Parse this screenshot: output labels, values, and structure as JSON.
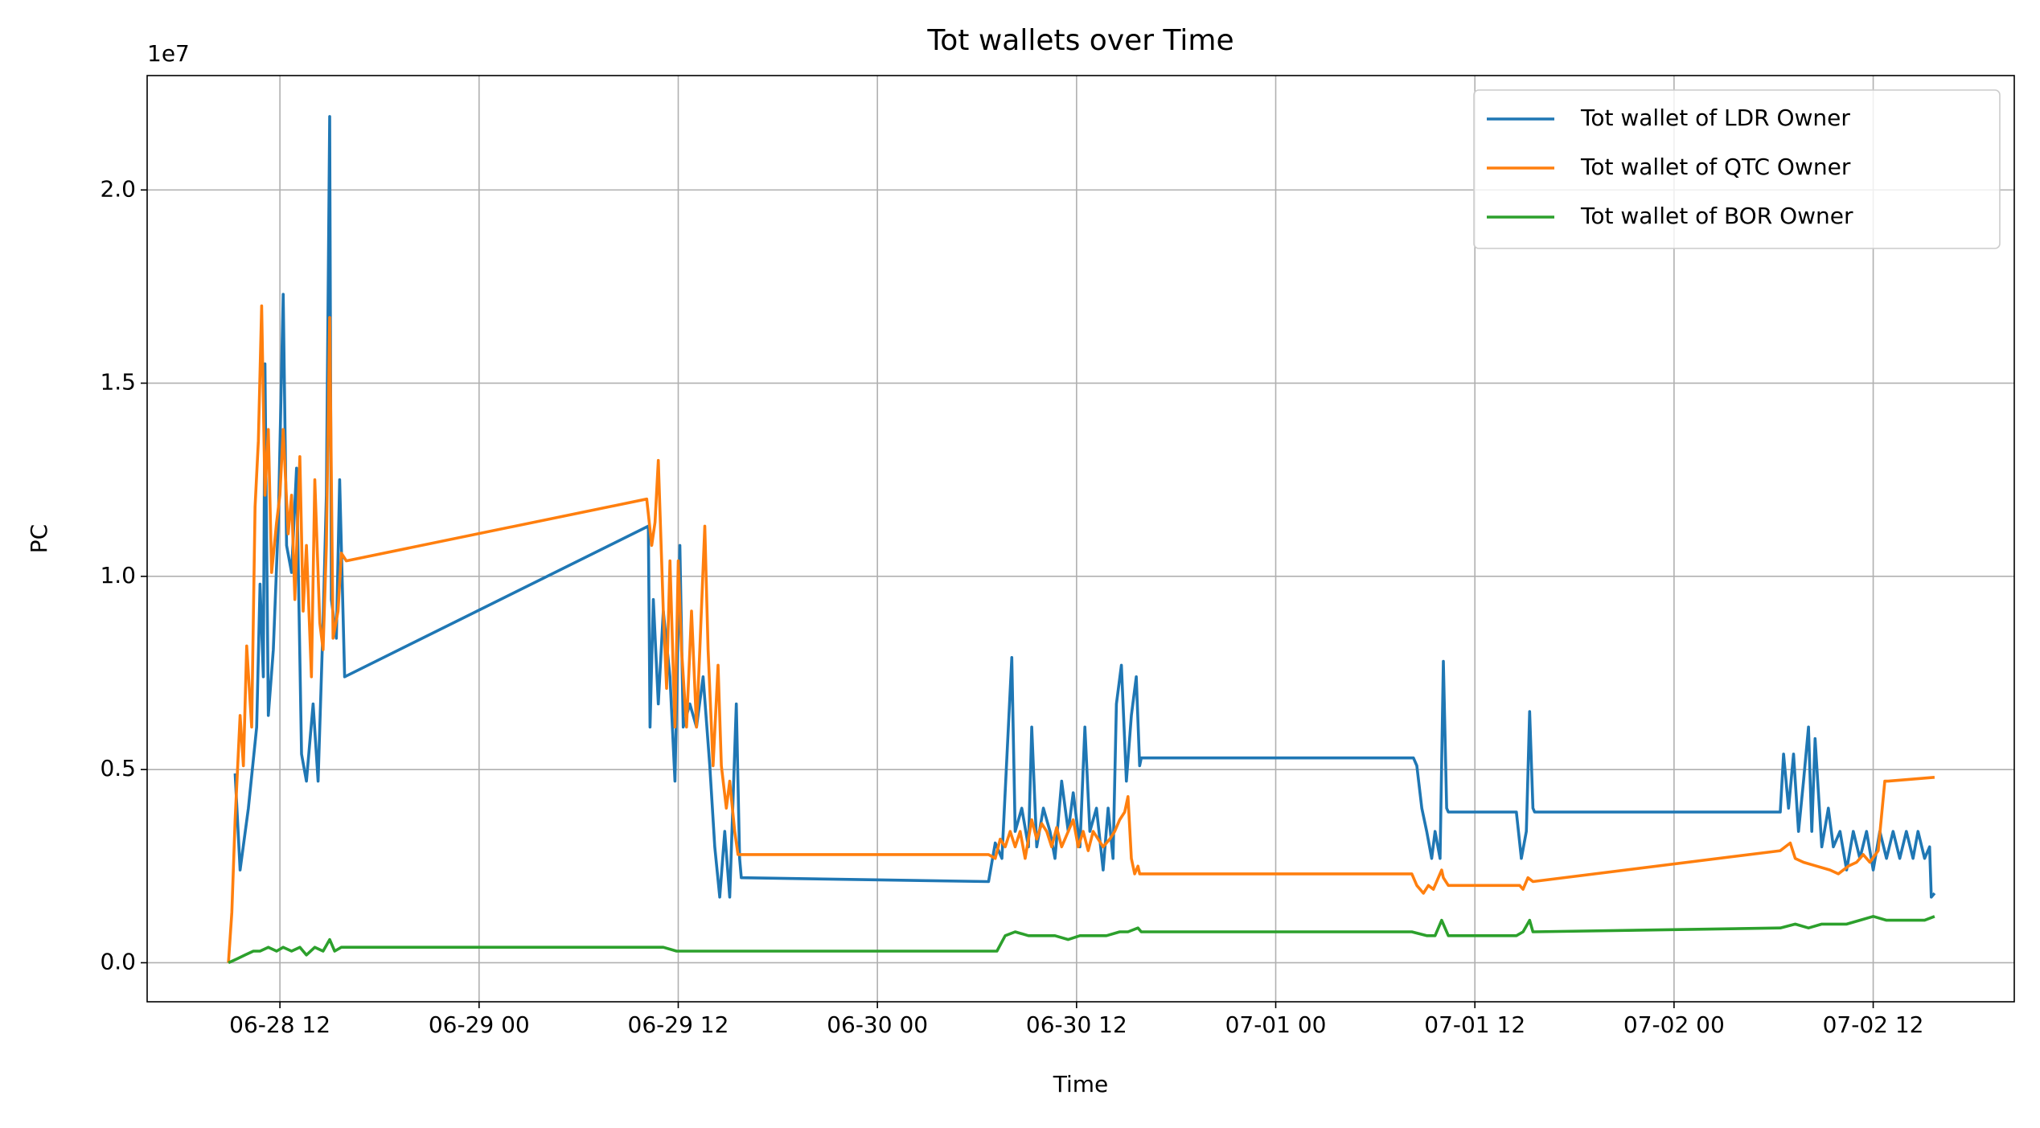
{
  "chart_data": {
    "type": "line",
    "title": "Tot wallets over Time",
    "x_label": "Time",
    "y_label": "PC",
    "y_offset_label": "1e7",
    "xlim": [
      4.0,
      116.5
    ],
    "xticks": [
      {
        "value": 12,
        "label": "06-28 12"
      },
      {
        "value": 24,
        "label": "06-29 00"
      },
      {
        "value": 36,
        "label": "06-29 12"
      },
      {
        "value": 48,
        "label": "06-30 00"
      },
      {
        "value": 60,
        "label": "06-30 12"
      },
      {
        "value": 72,
        "label": "07-01 00"
      },
      {
        "value": 84,
        "label": "07-01 12"
      },
      {
        "value": 96,
        "label": "07-02 00"
      },
      {
        "value": 108,
        "label": "07-02 12"
      }
    ],
    "ylim": [
      -1010000.0,
      22960000.0
    ],
    "yticks": [
      {
        "value": 0,
        "label": "0.0"
      },
      {
        "value": 5000000.0,
        "label": "0.5"
      },
      {
        "value": 10000000.0,
        "label": "1.0"
      },
      {
        "value": 15000000.0,
        "label": "1.5"
      },
      {
        "value": 20000000.0,
        "label": "2.0"
      }
    ],
    "grid": true,
    "legend": "upper right",
    "series": [
      {
        "name": "Tot wallet of LDR Owner",
        "color": "#1f77b4",
        "x": [
          9.3,
          9.6,
          10.1,
          10.6,
          10.8,
          11.0,
          11.1,
          11.3,
          11.6,
          11.9,
          12.2,
          12.4,
          12.7,
          13.0,
          13.3,
          13.6,
          14.0,
          14.3,
          14.6,
          14.8,
          15.0,
          15.1,
          15.4,
          15.6,
          15.9,
          34.2,
          34.3,
          34.5,
          34.8,
          35.1,
          35.5,
          35.8,
          36.1,
          36.3,
          36.7,
          37.1,
          37.5,
          37.9,
          38.2,
          38.5,
          38.8,
          39.1,
          39.5,
          39.7,
          39.8,
          54.7,
          55.1,
          55.5,
          56.1,
          56.3,
          56.7,
          57.1,
          57.3,
          57.6,
          58.0,
          58.4,
          58.7,
          59.1,
          59.5,
          59.8,
          60.2,
          60.5,
          60.8,
          61.2,
          61.6,
          61.9,
          62.2,
          62.4,
          62.7,
          63.0,
          63.3,
          63.6,
          63.8,
          63.9,
          80.3,
          80.5,
          80.8,
          81.1,
          81.4,
          81.6,
          81.9,
          82.1,
          82.3,
          82.4,
          86.5,
          86.8,
          87.1,
          87.3,
          87.5,
          87.6,
          102.4,
          102.6,
          102.9,
          103.2,
          103.5,
          103.8,
          104.1,
          104.3,
          104.5,
          104.9,
          105.3,
          105.6,
          106.0,
          106.4,
          106.8,
          107.2,
          107.6,
          108.0,
          108.4,
          108.8,
          109.2,
          109.6,
          110.0,
          110.4,
          110.7,
          111.1,
          111.4,
          111.5,
          111.7
        ],
        "values": [
          4900000.0,
          2400000.0,
          4000000.0,
          6100000.0,
          9800000.0,
          7400000.0,
          15500000.0,
          6400000.0,
          8100000.0,
          11400000.0,
          17300000.0,
          10800000.0,
          10100000.0,
          12800000.0,
          5400000.0,
          4700000.0,
          6700000.0,
          4700000.0,
          8800000.0,
          12100000.0,
          21900000.0,
          9400000.0,
          8400000.0,
          12500000.0,
          7400000.0,
          11300000.0,
          6100000.0,
          9400000.0,
          6700000.0,
          9100000.0,
          7400000.0,
          4700000.0,
          10800000.0,
          6100000.0,
          6700000.0,
          6100000.0,
          7400000.0,
          5100000.0,
          3000000.0,
          1700000.0,
          3400000.0,
          1700000.0,
          6700000.0,
          2700000.0,
          2200000.0,
          2100000.0,
          3100000.0,
          2700000.0,
          7900000.0,
          3400000.0,
          4000000.0,
          3000000.0,
          6100000.0,
          3000000.0,
          4000000.0,
          3400000.0,
          2700000.0,
          4700000.0,
          3400000.0,
          4400000.0,
          3000000.0,
          6100000.0,
          3400000.0,
          4000000.0,
          2400000.0,
          4000000.0,
          2700000.0,
          6700000.0,
          7700000.0,
          4700000.0,
          6400000.0,
          7400000.0,
          5100000.0,
          5300000.0,
          5300000.0,
          5100000.0,
          4000000.0,
          3400000.0,
          2700000.0,
          3400000.0,
          2700000.0,
          7800000.0,
          4000000.0,
          3900000.0,
          3900000.0,
          2700000.0,
          3400000.0,
          6500000.0,
          4000000.0,
          3900000.0,
          3900000.0,
          5400000.0,
          4000000.0,
          5400000.0,
          3400000.0,
          4700000.0,
          6100000.0,
          3400000.0,
          5800000.0,
          3000000.0,
          4000000.0,
          3000000.0,
          3400000.0,
          2400000.0,
          3400000.0,
          2700000.0,
          3400000.0,
          2400000.0,
          3400000.0,
          2700000.0,
          3400000.0,
          2700000.0,
          3400000.0,
          2700000.0,
          3400000.0,
          2700000.0,
          3000000.0,
          1700000.0,
          1800000.0
        ]
      },
      {
        "name": "Tot wallet of QTC Owner",
        "color": "#ff7f0e",
        "x": [
          8.9,
          9.1,
          9.3,
          9.6,
          9.8,
          10.0,
          10.3,
          10.5,
          10.7,
          10.9,
          11.1,
          11.3,
          11.5,
          11.8,
          12.0,
          12.2,
          12.5,
          12.7,
          12.9,
          13.2,
          13.4,
          13.6,
          13.9,
          14.1,
          14.4,
          14.6,
          14.8,
          15.0,
          15.2,
          15.5,
          15.7,
          16.0,
          34.1,
          34.4,
          34.6,
          34.8,
          35.1,
          35.3,
          35.5,
          35.8,
          36.0,
          36.2,
          36.5,
          36.8,
          37.1,
          37.3,
          37.6,
          37.8,
          38.1,
          38.4,
          38.6,
          38.9,
          39.1,
          39.4,
          39.6,
          54.7,
          55.1,
          55.4,
          55.7,
          56.0,
          56.3,
          56.6,
          56.9,
          57.3,
          57.6,
          57.9,
          58.2,
          58.5,
          58.8,
          59.1,
          59.5,
          59.8,
          60.1,
          60.4,
          60.7,
          61.0,
          61.3,
          61.6,
          62.0,
          62.3,
          62.6,
          62.9,
          63.1,
          63.3,
          63.5,
          63.7,
          63.8,
          80.2,
          80.5,
          80.9,
          81.2,
          81.5,
          81.7,
          82.0,
          82.1,
          82.4,
          86.7,
          86.9,
          87.2,
          87.5,
          102.4,
          103.0,
          103.3,
          103.8,
          104.6,
          105.4,
          105.9,
          106.5,
          107.0,
          107.4,
          107.8,
          108.3,
          108.7,
          108.9,
          111.7
        ],
        "values": [
          0,
          1300000.0,
          3700000.0,
          6400000.0,
          5100000.0,
          8200000.0,
          6100000.0,
          11800000.0,
          13500000.0,
          17000000.0,
          12100000.0,
          13800000.0,
          10100000.0,
          11400000.0,
          12100000.0,
          13800000.0,
          11100000.0,
          12100000.0,
          9400000.0,
          13100000.0,
          9100000.0,
          10800000.0,
          7400000.0,
          12500000.0,
          8800000.0,
          8100000.0,
          10800000.0,
          16700000.0,
          8400000.0,
          9100000.0,
          10600000.0,
          10400000.0,
          12000000.0,
          10800000.0,
          11400000.0,
          13000000.0,
          9100000.0,
          7100000.0,
          10400000.0,
          6100000.0,
          10400000.0,
          8100000.0,
          6100000.0,
          9100000.0,
          6100000.0,
          8100000.0,
          11300000.0,
          8100000.0,
          5100000.0,
          7700000.0,
          5100000.0,
          4000000.0,
          4700000.0,
          3400000.0,
          2800000.0,
          2800000.0,
          2700000.0,
          3200000.0,
          3000000.0,
          3400000.0,
          3000000.0,
          3400000.0,
          2700000.0,
          3700000.0,
          3200000.0,
          3600000.0,
          3400000.0,
          3000000.0,
          3500000.0,
          3000000.0,
          3400000.0,
          3700000.0,
          3000000.0,
          3400000.0,
          2900000.0,
          3400000.0,
          3200000.0,
          3000000.0,
          3200000.0,
          3400000.0,
          3700000.0,
          3900000.0,
          4300000.0,
          2700000.0,
          2300000.0,
          2500000.0,
          2300000.0,
          2300000.0,
          2000000.0,
          1800000.0,
          2000000.0,
          1900000.0,
          2100000.0,
          2400000.0,
          2200000.0,
          2000000.0,
          2000000.0,
          1900000.0,
          2200000.0,
          2100000.0,
          2900000.0,
          3100000.0,
          2700000.0,
          2600000.0,
          2500000.0,
          2400000.0,
          2300000.0,
          2500000.0,
          2600000.0,
          2800000.0,
          2600000.0,
          2900000.0,
          4700000.0,
          4700000.0,
          4800000.0
        ]
      },
      {
        "name": "Tot wallet of BOR Owner",
        "color": "#2ca02c",
        "x": [
          8.9,
          9.4,
          9.9,
          10.4,
          10.8,
          11.3,
          11.8,
          12.2,
          12.7,
          13.2,
          13.6,
          14.1,
          14.6,
          15.0,
          15.3,
          15.7,
          16.0,
          34.2,
          35.1,
          35.9,
          37.1,
          38.3,
          39.1,
          39.8,
          54.7,
          55.2,
          55.7,
          56.3,
          57.1,
          57.9,
          58.7,
          59.5,
          60.2,
          61.0,
          61.8,
          62.6,
          63.1,
          63.7,
          63.9,
          80.2,
          81.1,
          81.6,
          82.0,
          82.4,
          86.5,
          86.9,
          87.3,
          87.5,
          102.4,
          103.3,
          104.1,
          104.9,
          105.6,
          106.4,
          107.2,
          108.0,
          108.8,
          109.5,
          110.3,
          111.1,
          111.7
        ],
        "values": [
          0,
          100000.0,
          200000.0,
          300000.0,
          300000.0,
          400000.0,
          300000.0,
          400000.0,
          300000.0,
          400000.0,
          200000.0,
          400000.0,
          300000.0,
          600000.0,
          300000.0,
          400000.0,
          400000.0,
          400000.0,
          400000.0,
          300000.0,
          300000.0,
          300000.0,
          300000.0,
          300000.0,
          300000.0,
          300000.0,
          700000.0,
          800000.0,
          700000.0,
          700000.0,
          700000.0,
          600000.0,
          700000.0,
          700000.0,
          700000.0,
          800000.0,
          800000.0,
          900000.0,
          800000.0,
          800000.0,
          700000.0,
          700000.0,
          1100000.0,
          700000.0,
          700000.0,
          800000.0,
          1100000.0,
          800000.0,
          900000.0,
          1000000.0,
          900000.0,
          1000000.0,
          1000000.0,
          1000000.0,
          1100000.0,
          1200000.0,
          1100000.0,
          1100000.0,
          1100000.0,
          1100000.0,
          1200000.0
        ]
      }
    ]
  }
}
